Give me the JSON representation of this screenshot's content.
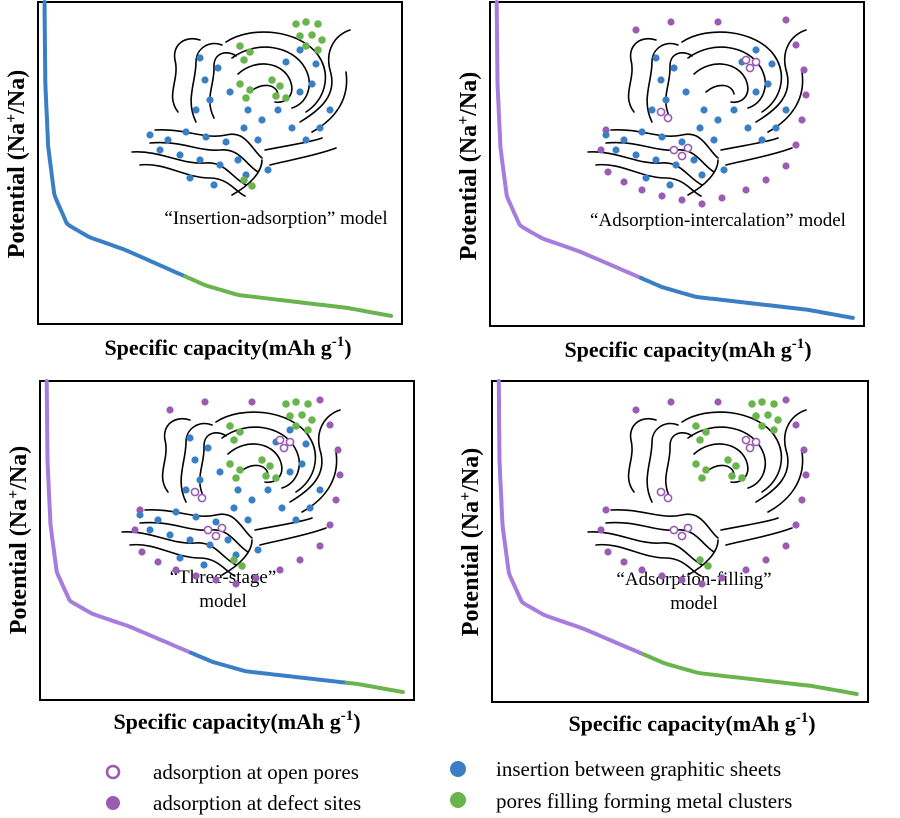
{
  "colors": {
    "blue": "#3a7fc6",
    "purple": "#a57ddc",
    "green": "#6ab44e",
    "purple_dot": "#9a5bb2",
    "frame": "#000000"
  },
  "axis": {
    "ylabel_main": "Potential (Na",
    "ylabel_sup": "+",
    "ylabel_tail": "/Na)",
    "xlabel_main": "Specific capacity(mAh g",
    "xlabel_sup": "-1",
    "xlabel_tail": ")"
  },
  "panels": [
    {
      "model_lines": [
        "“Insertion-adsorption” model"
      ],
      "curve_segments": [
        {
          "color": "blue",
          "icon": "blue-segment"
        },
        {
          "color": "green",
          "icon": "green-segment"
        }
      ],
      "mechanisms": [
        "insertion",
        "filling"
      ]
    },
    {
      "model_lines": [
        "“Adsorption-intercalation” model"
      ],
      "curve_segments": [
        {
          "color": "purple",
          "icon": "purple-segment"
        },
        {
          "color": "blue",
          "icon": "blue-segment"
        }
      ],
      "mechanisms": [
        "insertion",
        "open_pores",
        "defects"
      ]
    },
    {
      "model_lines": [
        "“Three-stage”",
        "model"
      ],
      "curve_segments": [
        {
          "color": "purple",
          "icon": "purple-segment"
        },
        {
          "color": "blue",
          "icon": "blue-segment"
        },
        {
          "color": "green",
          "icon": "green-segment"
        }
      ],
      "mechanisms": [
        "insertion",
        "filling",
        "open_pores",
        "defects"
      ]
    },
    {
      "model_lines": [
        "“Adsorption-filling”",
        "model"
      ],
      "curve_segments": [
        {
          "color": "purple",
          "icon": "purple-segment"
        },
        {
          "color": "green",
          "icon": "green-segment"
        }
      ],
      "mechanisms": [
        "filling",
        "open_pores",
        "defects"
      ]
    }
  ],
  "legend": {
    "items": [
      {
        "icon": "open-circle-icon",
        "label": "adsorption at open pores"
      },
      {
        "icon": "filled-purple-dot-icon",
        "label": "adsorption at defect sites"
      },
      {
        "icon": "filled-blue-dot-icon",
        "label": "insertion between graphitic sheets"
      },
      {
        "icon": "filled-green-dot-icon",
        "label": "pores filling forming metal clusters"
      }
    ]
  }
}
